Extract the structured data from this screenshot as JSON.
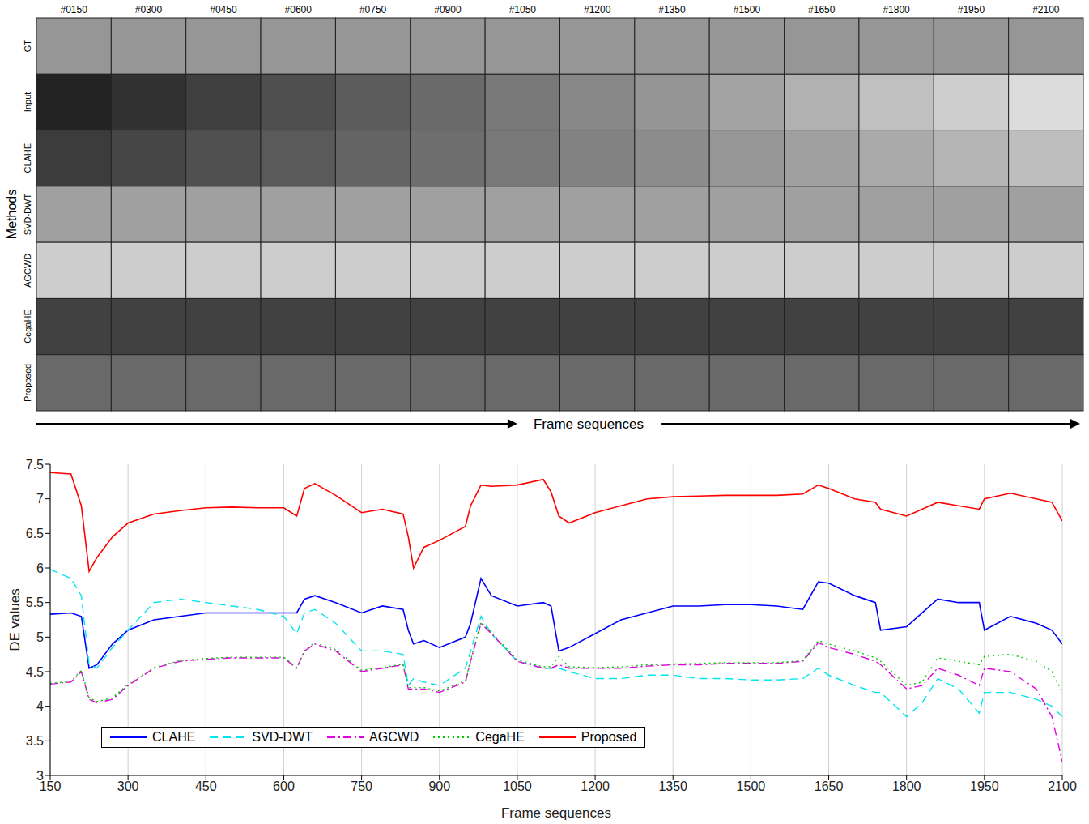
{
  "image_grid": {
    "columns": [
      "#0150",
      "#0300",
      "#0450",
      "#0600",
      "#0750",
      "#0900",
      "#1050",
      "#1200",
      "#1350",
      "#1500",
      "#1650",
      "#1800",
      "#1950",
      "#2100"
    ],
    "rows": [
      "GT",
      "Input",
      "CLAHE",
      "SVD-DWT",
      "AGCWD",
      "CegaHE",
      "Proposed"
    ],
    "y_label": "Methods",
    "x_label": "Frame sequences"
  },
  "chart_data": {
    "type": "line",
    "xlabel": "Frame sequences",
    "ylabel": "DE values",
    "xlim": [
      150,
      2100
    ],
    "xticks": [
      150,
      300,
      450,
      600,
      750,
      900,
      1050,
      1200,
      1350,
      1500,
      1650,
      1800,
      1950,
      2100
    ],
    "ylim": [
      3,
      7.5
    ],
    "yticks": [
      3,
      3.5,
      4,
      4.5,
      5,
      5.5,
      6,
      6.5,
      7,
      7.5
    ],
    "grid": true,
    "legend": "lower left",
    "x": [
      150,
      190,
      210,
      225,
      240,
      270,
      300,
      350,
      400,
      450,
      500,
      550,
      600,
      625,
      640,
      660,
      700,
      750,
      790,
      830,
      840,
      850,
      870,
      900,
      950,
      960,
      980,
      1000,
      1050,
      1100,
      1115,
      1130,
      1150,
      1200,
      1250,
      1300,
      1350,
      1400,
      1450,
      1500,
      1550,
      1600,
      1630,
      1650,
      1700,
      1740,
      1750,
      1800,
      1830,
      1860,
      1900,
      1940,
      1950,
      2000,
      2050,
      2080,
      2100
    ],
    "series": [
      {
        "name": "CLAHE",
        "color": "#0000ff",
        "line_style": "solid",
        "values": [
          5.33,
          5.35,
          5.3,
          4.55,
          4.6,
          4.9,
          5.1,
          5.25,
          5.3,
          5.35,
          5.35,
          5.35,
          5.35,
          5.35,
          5.55,
          5.6,
          5.5,
          5.35,
          5.45,
          5.4,
          5.1,
          4.9,
          4.95,
          4.85,
          5.0,
          5.2,
          5.85,
          5.6,
          5.45,
          5.5,
          5.45,
          4.8,
          4.85,
          5.05,
          5.25,
          5.35,
          5.45,
          5.45,
          5.47,
          5.47,
          5.45,
          5.4,
          5.8,
          5.78,
          5.6,
          5.5,
          5.1,
          5.15,
          5.35,
          5.55,
          5.5,
          5.5,
          5.1,
          5.3,
          5.2,
          5.1,
          4.9
        ]
      },
      {
        "name": "SVD-DWT",
        "color": "#00e5ee",
        "line_style": "dashed",
        "values": [
          5.98,
          5.85,
          5.6,
          4.6,
          4.55,
          4.85,
          5.1,
          5.5,
          5.55,
          5.5,
          5.45,
          5.4,
          5.3,
          5.05,
          5.35,
          5.4,
          5.2,
          4.8,
          4.8,
          4.75,
          4.3,
          4.4,
          4.35,
          4.3,
          4.55,
          4.8,
          5.3,
          5.05,
          4.65,
          4.55,
          4.55,
          4.55,
          4.5,
          4.4,
          4.4,
          4.45,
          4.45,
          4.4,
          4.4,
          4.38,
          4.38,
          4.4,
          4.55,
          4.45,
          4.3,
          4.2,
          4.2,
          3.85,
          4.05,
          4.4,
          4.25,
          3.9,
          4.2,
          4.2,
          4.1,
          4.0,
          3.85
        ]
      },
      {
        "name": "AGCWD",
        "color": "#e000e0",
        "line_style": "dashdot",
        "values": [
          4.32,
          4.35,
          4.5,
          4.1,
          4.05,
          4.1,
          4.3,
          4.55,
          4.65,
          4.68,
          4.7,
          4.7,
          4.7,
          4.55,
          4.8,
          4.9,
          4.8,
          4.5,
          4.55,
          4.6,
          4.25,
          4.25,
          4.25,
          4.2,
          4.35,
          4.65,
          5.2,
          5.05,
          4.65,
          4.55,
          4.55,
          4.6,
          4.55,
          4.55,
          4.55,
          4.58,
          4.6,
          4.6,
          4.62,
          4.62,
          4.62,
          4.65,
          4.92,
          4.85,
          4.75,
          4.65,
          4.6,
          4.25,
          4.3,
          4.55,
          4.45,
          4.3,
          4.55,
          4.5,
          4.25,
          3.85,
          3.2
        ]
      },
      {
        "name": "CegaHE",
        "color": "#00cc00",
        "line_style": "dotted",
        "values": [
          4.33,
          4.36,
          4.52,
          4.12,
          4.07,
          4.12,
          4.32,
          4.56,
          4.66,
          4.69,
          4.71,
          4.71,
          4.71,
          4.56,
          4.81,
          4.92,
          4.82,
          4.52,
          4.56,
          4.61,
          4.27,
          4.27,
          4.27,
          4.22,
          4.37,
          4.67,
          5.22,
          5.07,
          4.67,
          4.57,
          4.57,
          4.72,
          4.57,
          4.56,
          4.57,
          4.6,
          4.61,
          4.62,
          4.63,
          4.63,
          4.63,
          4.66,
          4.95,
          4.9,
          4.8,
          4.7,
          4.65,
          4.3,
          4.35,
          4.7,
          4.65,
          4.6,
          4.72,
          4.75,
          4.65,
          4.5,
          4.2
        ]
      },
      {
        "name": "Proposed",
        "color": "#ff0000",
        "line_style": "solid",
        "values": [
          7.38,
          7.36,
          6.9,
          5.95,
          6.15,
          6.45,
          6.65,
          6.78,
          6.83,
          6.87,
          6.88,
          6.87,
          6.87,
          6.75,
          7.15,
          7.22,
          7.05,
          6.8,
          6.85,
          6.78,
          6.45,
          6.0,
          6.3,
          6.4,
          6.6,
          6.9,
          7.2,
          7.18,
          7.2,
          7.28,
          7.1,
          6.75,
          6.65,
          6.8,
          6.9,
          7.0,
          7.03,
          7.04,
          7.05,
          7.05,
          7.05,
          7.07,
          7.2,
          7.15,
          7.0,
          6.95,
          6.85,
          6.75,
          6.85,
          6.95,
          6.9,
          6.85,
          7.0,
          7.08,
          7.0,
          6.95,
          6.68
        ]
      }
    ]
  }
}
